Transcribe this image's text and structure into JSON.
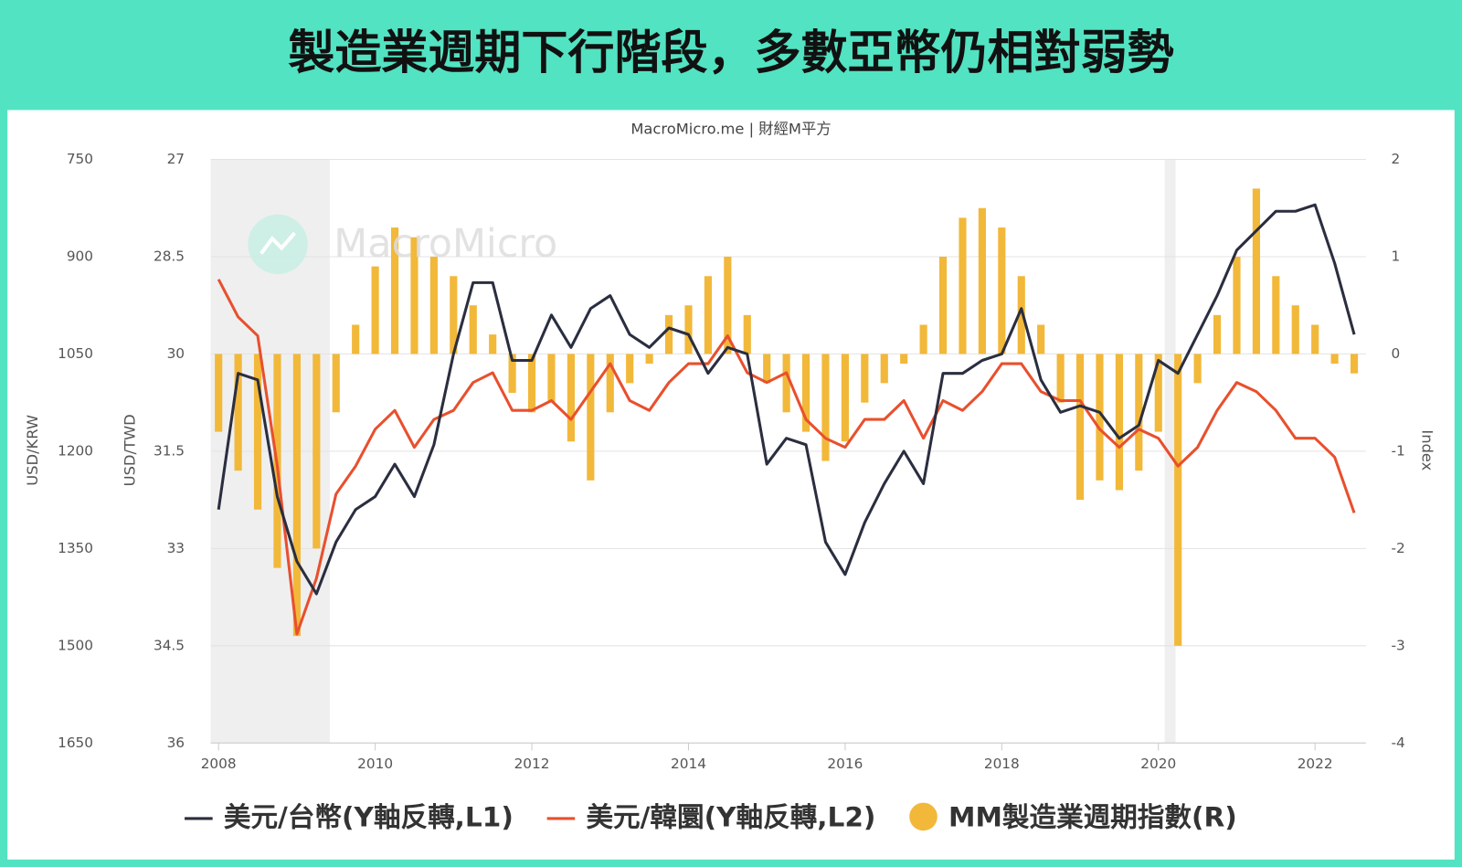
{
  "header": {
    "title": "製造業週期下行階段，多數亞幣仍相對弱勢"
  },
  "chart_data": {
    "type": "combo",
    "source": "MacroMicro.me | 財經M平方",
    "watermark": "MacroMicro",
    "y_axis_label": "USD/TWD",
    "y2_axis_label": "USD/KRW",
    "y3_axis_label": "Index",
    "xlim": [
      2007.9,
      2022.65
    ],
    "xticks": [
      2008,
      2010,
      2012,
      2014,
      2016,
      2018,
      2020,
      2022
    ],
    "ylim": [
      36,
      27
    ],
    "yticks": [
      27,
      28.5,
      30,
      31.5,
      33,
      34.5,
      36
    ],
    "y2lim": [
      1650,
      750
    ],
    "y2ticks": [
      750,
      900,
      1050,
      1200,
      1350,
      1500,
      1650
    ],
    "y3lim": [
      -4,
      2
    ],
    "y3ticks": [
      2,
      1,
      0,
      -1,
      -2,
      -3,
      -4
    ],
    "grid": true,
    "shaded_ranges": [
      [
        2007.9,
        2009.42
      ],
      [
        2020.08,
        2020.22
      ]
    ],
    "x": [
      2008.0,
      2008.25,
      2008.5,
      2008.75,
      2009.0,
      2009.25,
      2009.5,
      2009.75,
      2010.0,
      2010.25,
      2010.5,
      2010.75,
      2011.0,
      2011.25,
      2011.5,
      2011.75,
      2012.0,
      2012.25,
      2012.5,
      2012.75,
      2013.0,
      2013.25,
      2013.5,
      2013.75,
      2014.0,
      2014.25,
      2014.5,
      2014.75,
      2015.0,
      2015.25,
      2015.5,
      2015.75,
      2016.0,
      2016.25,
      2016.5,
      2016.75,
      2017.0,
      2017.25,
      2017.5,
      2017.75,
      2018.0,
      2018.25,
      2018.5,
      2018.75,
      2019.0,
      2019.25,
      2019.5,
      2019.75,
      2020.0,
      2020.25,
      2020.5,
      2020.75,
      2021.0,
      2021.25,
      2021.5,
      2021.75,
      2022.0,
      2022.25,
      2022.5
    ],
    "series": [
      {
        "name": "MM製造業週期指數(R)",
        "type": "bar",
        "axis": "y3",
        "color": "#f2b83a",
        "values": [
          -0.8,
          -1.2,
          -1.6,
          -2.2,
          -2.9,
          -2.0,
          -0.6,
          0.3,
          0.9,
          1.3,
          1.2,
          1.0,
          0.8,
          0.5,
          0.2,
          -0.4,
          -0.6,
          -0.5,
          -0.9,
          -1.3,
          -0.6,
          -0.3,
          -0.1,
          0.4,
          0.5,
          0.8,
          1.0,
          0.4,
          -0.3,
          -0.6,
          -0.8,
          -1.1,
          -0.9,
          -0.5,
          -0.3,
          -0.1,
          0.3,
          1.0,
          1.4,
          1.5,
          1.3,
          0.8,
          0.3,
          -0.5,
          -1.5,
          -1.3,
          -1.4,
          -1.2,
          -0.8,
          -3.0,
          -0.3,
          0.4,
          1.0,
          1.7,
          0.8,
          0.5,
          0.3,
          -0.1,
          -0.2
        ]
      },
      {
        "name": "美元/韓圜(Y軸反轉,L2)",
        "type": "line",
        "axis": "y2",
        "color": "#e8502e",
        "values": [
          935,
          993,
          1022,
          1223,
          1482,
          1396,
          1266,
          1223,
          1166,
          1137,
          1194,
          1151,
          1137,
          1094,
          1079,
          1137,
          1137,
          1122,
          1151,
          1108,
          1065,
          1122,
          1137,
          1094,
          1065,
          1065,
          1022,
          1079,
          1094,
          1079,
          1151,
          1180,
          1194,
          1151,
          1151,
          1122,
          1180,
          1122,
          1137,
          1108,
          1065,
          1065,
          1108,
          1122,
          1122,
          1166,
          1194,
          1166,
          1180,
          1223,
          1194,
          1137,
          1094,
          1108,
          1137,
          1180,
          1180,
          1209,
          1295
        ]
      },
      {
        "name": "美元/台幣(Y軸反轉,L1)",
        "type": "line",
        "axis": "y",
        "color": "#2a2e3f",
        "values": [
          32.4,
          30.3,
          30.4,
          32.2,
          33.2,
          33.7,
          32.9,
          32.4,
          32.2,
          31.7,
          32.2,
          31.4,
          30.0,
          28.9,
          28.9,
          30.1,
          30.1,
          29.4,
          29.9,
          29.3,
          29.1,
          29.7,
          29.9,
          29.6,
          29.7,
          30.3,
          29.9,
          30.0,
          31.7,
          31.3,
          31.4,
          32.9,
          33.4,
          32.6,
          32.0,
          31.5,
          32.0,
          30.3,
          30.3,
          30.1,
          30.0,
          29.3,
          30.4,
          30.9,
          30.8,
          30.9,
          31.3,
          31.1,
          30.1,
          30.3,
          29.7,
          29.1,
          28.4,
          28.1,
          27.8,
          27.8,
          27.7,
          28.6,
          29.7
        ]
      }
    ],
    "legend_order": [
      2,
      1,
      0
    ]
  }
}
